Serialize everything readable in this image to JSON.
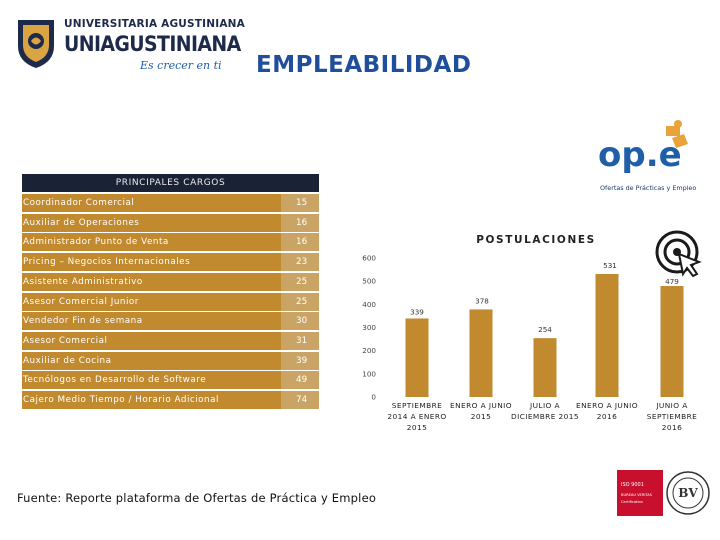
{
  "header": {
    "university_name": "UNIVERSITARIA AGUSTINIANA",
    "brand": "UNIAGUSTINIANA",
    "slogan": "Es crecer en ti",
    "page_title": "EMPLEABILIDAD"
  },
  "logos": {
    "ope_mark": "op.e",
    "ope_caption": "Ofertas de Prácticas y Empleo",
    "cert_line1": "ISO 9001",
    "cert_line2": "BUREAU VERITAS",
    "cert_line3": "Certification"
  },
  "icons": [
    "university-crest-icon",
    "target-click-icon",
    "ope-logo-icon",
    "certification-seal-icon"
  ],
  "colors": {
    "title": "#1f4e9a",
    "bar": "#c28a2f",
    "row": "#c28a2f",
    "row_value": "#caa464",
    "table_header": "#1a2335"
  },
  "table": {
    "title": "PRINCIPALES CARGOS",
    "rows": [
      {
        "label": "Coordinador Comercial",
        "value": "15"
      },
      {
        "label": "Auxiliar de Operaciones",
        "value": "16"
      },
      {
        "label": "Administrador Punto de Venta",
        "value": "16"
      },
      {
        "label": "Pricing – Negocios Internacionales",
        "value": "23"
      },
      {
        "label": "Asistente Administrativo",
        "value": "25"
      },
      {
        "label": "Asesor Comercial Junior",
        "value": "25"
      },
      {
        "label": "Vendedor Fin de semana",
        "value": "30"
      },
      {
        "label": "Asesor Comercial",
        "value": "31"
      },
      {
        "label": "Auxiliar de Cocina",
        "value": "39"
      },
      {
        "label": "Tecnólogos en Desarrollo de Software",
        "value": "49"
      },
      {
        "label": "Cajero Medio Tiempo / Horario Adicional",
        "value": "74"
      }
    ]
  },
  "source": "Fuente: Reporte plataforma de Ofertas de Práctica y Empleo",
  "chart_data": {
    "type": "bar",
    "title": "POSTULACIONES",
    "categories": [
      [
        "SEPTIEMBRE",
        "2014 A ENERO",
        "2015"
      ],
      [
        "ENERO A JUNIO",
        "2015"
      ],
      [
        "JULIO A",
        "DICIEMBRE 2015"
      ],
      [
        "ENERO A JUNIO",
        "2016"
      ],
      [
        "JUNIO A",
        "SEPTIEMBRE",
        "2016"
      ]
    ],
    "values": [
      339,
      378,
      254,
      531,
      479
    ],
    "ylim": [
      0,
      600
    ],
    "yticks": [
      0,
      100,
      200,
      300,
      400,
      500,
      600
    ],
    "grid": false,
    "legend": false
  }
}
